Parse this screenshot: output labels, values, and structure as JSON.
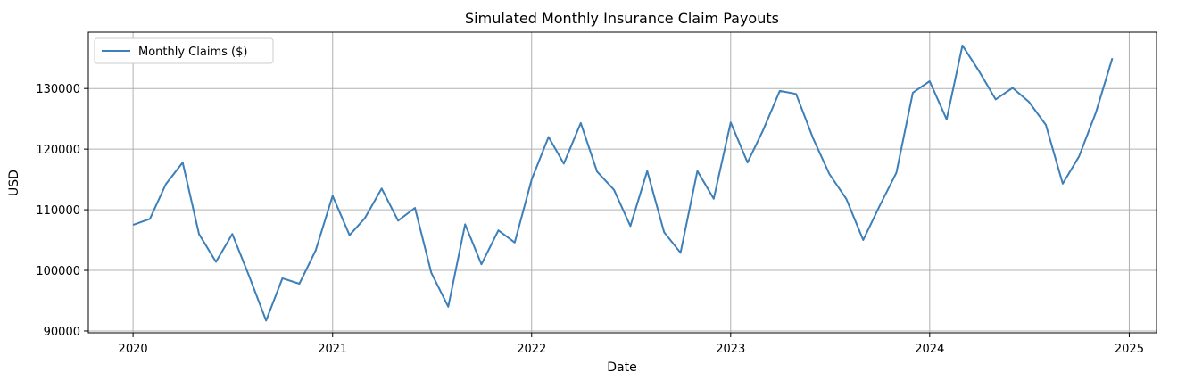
{
  "chart_data": {
    "type": "line",
    "title": "Simulated Monthly Insurance Claim Payouts",
    "xlabel": "Date",
    "ylabel": "USD",
    "legend": {
      "placement": "top-left"
    },
    "grid": true,
    "colors": {
      "series": "#3d7fb8",
      "grid": "#b0b0b0",
      "axis": "#000000"
    },
    "xlim": [
      "2019-10-11",
      "2025-02-20"
    ],
    "ylim": [
      89700,
      139300
    ],
    "xticks": [
      {
        "value": "2020-01-01",
        "label": "2020"
      },
      {
        "value": "2021-01-01",
        "label": "2021"
      },
      {
        "value": "2022-01-01",
        "label": "2022"
      },
      {
        "value": "2023-01-01",
        "label": "2023"
      },
      {
        "value": "2024-01-01",
        "label": "2024"
      },
      {
        "value": "2025-01-01",
        "label": "2025"
      }
    ],
    "yticks": [
      {
        "value": 90000,
        "label": "90000"
      },
      {
        "value": 100000,
        "label": "100000"
      },
      {
        "value": 110000,
        "label": "110000"
      },
      {
        "value": 120000,
        "label": "120000"
      },
      {
        "value": 130000,
        "label": "130000"
      }
    ],
    "series": [
      {
        "name": "Monthly Claims ($)",
        "x": [
          "2020-01-01",
          "2020-02-01",
          "2020-03-01",
          "2020-04-01",
          "2020-05-01",
          "2020-06-01",
          "2020-07-01",
          "2020-08-01",
          "2020-09-01",
          "2020-10-01",
          "2020-11-01",
          "2020-12-01",
          "2021-01-01",
          "2021-02-01",
          "2021-03-01",
          "2021-04-01",
          "2021-05-01",
          "2021-06-01",
          "2021-07-01",
          "2021-08-01",
          "2021-09-01",
          "2021-10-01",
          "2021-11-01",
          "2021-12-01",
          "2022-01-01",
          "2022-02-01",
          "2022-03-01",
          "2022-04-01",
          "2022-05-01",
          "2022-06-01",
          "2022-07-01",
          "2022-08-01",
          "2022-09-01",
          "2022-10-01",
          "2022-11-01",
          "2022-12-01",
          "2023-01-01",
          "2023-02-01",
          "2023-03-01",
          "2023-04-01",
          "2023-05-01",
          "2023-06-01",
          "2023-07-01",
          "2023-08-01",
          "2023-09-01",
          "2023-10-01",
          "2023-11-01",
          "2023-12-01",
          "2024-01-01",
          "2024-02-01",
          "2024-03-01",
          "2024-04-01",
          "2024-05-01",
          "2024-06-01",
          "2024-07-01",
          "2024-08-01",
          "2024-09-01",
          "2024-10-01",
          "2024-11-01",
          "2024-12-01"
        ],
        "values": [
          107500,
          108500,
          114200,
          117800,
          106000,
          101400,
          106000,
          99000,
          91700,
          98700,
          97800,
          103300,
          112300,
          105800,
          108600,
          113500,
          108200,
          110300,
          99600,
          94000,
          107600,
          101000,
          106600,
          104600,
          115000,
          122000,
          117600,
          124300,
          116300,
          113300,
          107300,
          116400,
          106300,
          102900,
          116400,
          111800,
          124400,
          117800,
          123000,
          129600,
          129100,
          121800,
          115900,
          111800,
          105000,
          110600,
          116100,
          129300,
          131200,
          124900,
          137100,
          132800,
          128200,
          130100,
          127800,
          124000,
          114300,
          118800,
          126100,
          135000
        ]
      }
    ]
  }
}
